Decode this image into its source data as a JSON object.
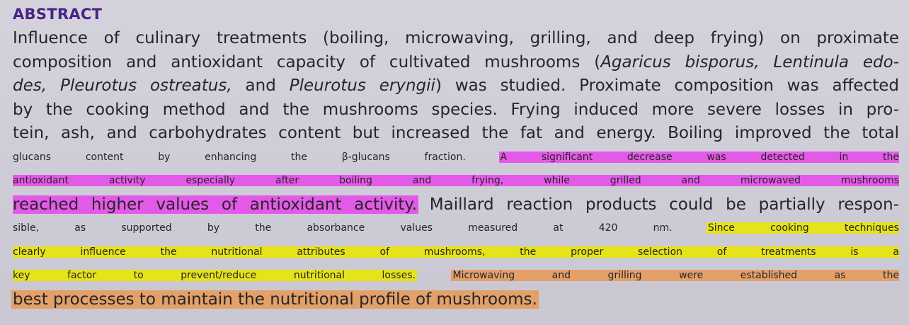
{
  "heading": "ABSTRACT",
  "lines": [
    [
      "Influence of culinary treatments (boiling, microwaving, grilling, and deep frying) on proximate"
    ],
    [
      "composition and antioxidant capacity of cultivated mushrooms (",
      "Agaricus bisporus, Lentinula edo-"
    ],
    [
      "des, Pleurotus ostreatus,",
      " and ",
      "Pleurotus eryngii",
      ") was studied. Proximate composition was affected"
    ],
    [
      "by the cooking method and the mushrooms species. Frying induced more severe losses in pro-"
    ],
    [
      "tein, ash, and carbohydrates content but increased the fat and energy. Boiling improved the total"
    ],
    [
      "glucans content by enhancing the β-glucans fraction. ",
      "A significant decrease was detected in the"
    ],
    [
      "antioxidant activity especially after boiling and frying, while grilled and microwaved mushrooms"
    ],
    [
      "reached higher values of antioxidant activity.",
      " Maillard reaction products could be partially respon-"
    ],
    [
      "sible, as supported by the absorbance values measured at 420 nm. ",
      "Since cooking techniques"
    ],
    [
      "clearly influence the nutritional attributes of mushrooms, the proper selection of treatments is a"
    ],
    [
      "key factor to prevent/reduce nutritional losses.",
      " ",
      "Microwaving and grilling were established as the"
    ],
    [
      "best processes to maintain the nutritional profile of mushrooms."
    ]
  ],
  "highlight_colors": {
    "pink": "#e45ae8",
    "yellow": "#e6e318",
    "orange": "#e3a069"
  }
}
